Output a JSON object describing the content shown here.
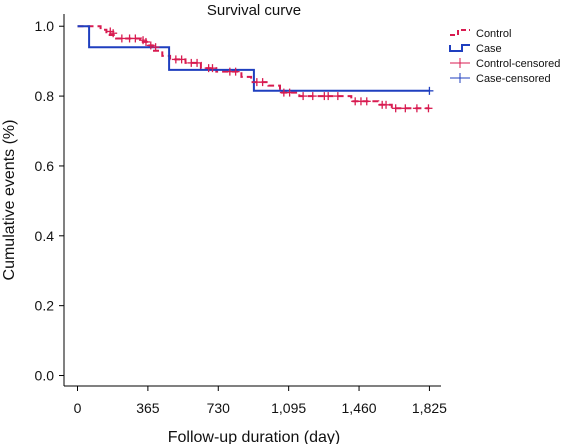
{
  "chart_data": {
    "type": "line",
    "title": "Survival curve",
    "xlabel": "Follow-up duration (day)",
    "ylabel": "Cumulative events (%)",
    "xlim": [
      -70,
      1885
    ],
    "ylim": [
      -0.03,
      1.035
    ],
    "xticks": [
      0,
      365,
      730,
      1095,
      1460,
      1825
    ],
    "xtick_labels": [
      "0",
      "365",
      "730",
      "1,095",
      "1,460",
      "1,825"
    ],
    "yticks": [
      0.0,
      0.2,
      0.4,
      0.6,
      0.8,
      1.0
    ],
    "ytick_labels": [
      "0.0",
      "0.2",
      "0.4",
      "0.6",
      "0.8",
      "1.0"
    ],
    "grid": false,
    "legend_position": "top-right",
    "series": [
      {
        "name": "Control",
        "color": "#d81b50",
        "dash": "6,4",
        "step": [
          [
            0,
            1.0
          ],
          [
            120,
            1.0
          ],
          [
            120,
            0.99
          ],
          [
            150,
            0.99
          ],
          [
            150,
            0.975
          ],
          [
            200,
            0.975
          ],
          [
            200,
            0.965
          ],
          [
            330,
            0.965
          ],
          [
            330,
            0.955
          ],
          [
            360,
            0.955
          ],
          [
            360,
            0.945
          ],
          [
            390,
            0.945
          ],
          [
            390,
            0.93
          ],
          [
            440,
            0.93
          ],
          [
            440,
            0.915
          ],
          [
            480,
            0.915
          ],
          [
            480,
            0.905
          ],
          [
            560,
            0.905
          ],
          [
            560,
            0.895
          ],
          [
            640,
            0.895
          ],
          [
            640,
            0.88
          ],
          [
            720,
            0.88
          ],
          [
            720,
            0.87
          ],
          [
            850,
            0.87
          ],
          [
            850,
            0.855
          ],
          [
            900,
            0.855
          ],
          [
            900,
            0.84
          ],
          [
            990,
            0.84
          ],
          [
            990,
            0.83
          ],
          [
            1050,
            0.83
          ],
          [
            1050,
            0.81
          ],
          [
            1150,
            0.81
          ],
          [
            1150,
            0.8
          ],
          [
            1420,
            0.8
          ],
          [
            1420,
            0.785
          ],
          [
            1560,
            0.785
          ],
          [
            1560,
            0.775
          ],
          [
            1630,
            0.775
          ],
          [
            1630,
            0.765
          ],
          [
            1825,
            0.765
          ]
        ]
      },
      {
        "name": "Case",
        "color": "#1f3fbf",
        "dash": "",
        "step": [
          [
            0,
            1.0
          ],
          [
            60,
            1.0
          ],
          [
            60,
            0.94
          ],
          [
            475,
            0.94
          ],
          [
            475,
            0.875
          ],
          [
            915,
            0.875
          ],
          [
            915,
            0.815
          ],
          [
            1825,
            0.815
          ]
        ]
      },
      {
        "name": "Control-censored",
        "color": "#d81b50",
        "marker": "+",
        "points": [
          [
            170,
            0.985
          ],
          [
            185,
            0.98
          ],
          [
            230,
            0.965
          ],
          [
            270,
            0.965
          ],
          [
            300,
            0.965
          ],
          [
            340,
            0.96
          ],
          [
            355,
            0.955
          ],
          [
            380,
            0.945
          ],
          [
            405,
            0.94
          ],
          [
            510,
            0.905
          ],
          [
            540,
            0.905
          ],
          [
            590,
            0.895
          ],
          [
            620,
            0.895
          ],
          [
            680,
            0.88
          ],
          [
            700,
            0.88
          ],
          [
            790,
            0.87
          ],
          [
            820,
            0.87
          ],
          [
            930,
            0.84
          ],
          [
            960,
            0.84
          ],
          [
            1070,
            0.81
          ],
          [
            1100,
            0.81
          ],
          [
            1170,
            0.8
          ],
          [
            1220,
            0.8
          ],
          [
            1280,
            0.8
          ],
          [
            1300,
            0.8
          ],
          [
            1350,
            0.8
          ],
          [
            1440,
            0.785
          ],
          [
            1470,
            0.785
          ],
          [
            1500,
            0.785
          ],
          [
            1580,
            0.775
          ],
          [
            1600,
            0.775
          ],
          [
            1650,
            0.765
          ],
          [
            1700,
            0.765
          ],
          [
            1760,
            0.765
          ],
          [
            1820,
            0.765
          ]
        ]
      },
      {
        "name": "Case-censored",
        "color": "#1f3fbf",
        "marker": "+",
        "points": [
          [
            1825,
            0.815
          ]
        ]
      }
    ]
  }
}
